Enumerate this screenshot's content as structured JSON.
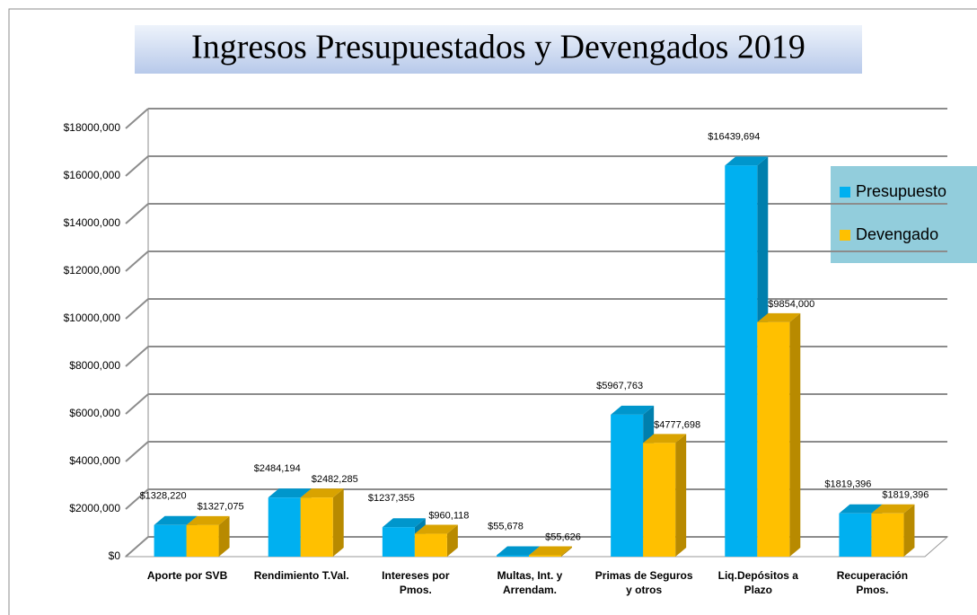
{
  "chart_data": {
    "type": "bar3d",
    "title": "Ingresos Presupuestados y Devengados 2019",
    "categories": [
      "Aporte por SVB",
      "Rendimiento T.Val.",
      "Intereses por Pmos.",
      "Multas, Int. y Arrendam.",
      "Primas de Seguros y otros",
      "Liq.Depósitos a Plazo",
      "Recuperación Pmos."
    ],
    "series": [
      {
        "name": "Presupuesto",
        "color": "#00b0f0",
        "values": [
          1328220,
          2484194,
          1237355,
          55678,
          5967763,
          16439694,
          1819396
        ],
        "value_labels": [
          "$1328,220",
          "$2484,194",
          "$1237,355",
          "$55,678",
          "$5967,763",
          "$16439,694",
          "$1819,396"
        ]
      },
      {
        "name": "Devengado",
        "color": "#ffc000",
        "values": [
          1327075,
          2482285,
          960118,
          55626,
          4777698,
          9854000,
          1819396
        ],
        "value_labels": [
          "$1327,075",
          "$2482,285",
          "$960,118",
          "$55,626",
          "$4777,698",
          "$9854,000",
          "$1819,396"
        ]
      }
    ],
    "ylim": [
      0,
      18000000
    ],
    "yticks": [
      {
        "value": 0,
        "label": "$0"
      },
      {
        "value": 2000000,
        "label": "$2000,000"
      },
      {
        "value": 4000000,
        "label": "$4000,000"
      },
      {
        "value": 6000000,
        "label": "$6000,000"
      },
      {
        "value": 8000000,
        "label": "$8000,000"
      },
      {
        "value": 10000000,
        "label": "$10000,000"
      },
      {
        "value": 12000000,
        "label": "$12000,000"
      },
      {
        "value": 14000000,
        "label": "$14000,000"
      },
      {
        "value": 16000000,
        "label": "$16000,000"
      },
      {
        "value": 18000000,
        "label": "$18000,000"
      }
    ],
    "grid": true,
    "legend": "right"
  }
}
